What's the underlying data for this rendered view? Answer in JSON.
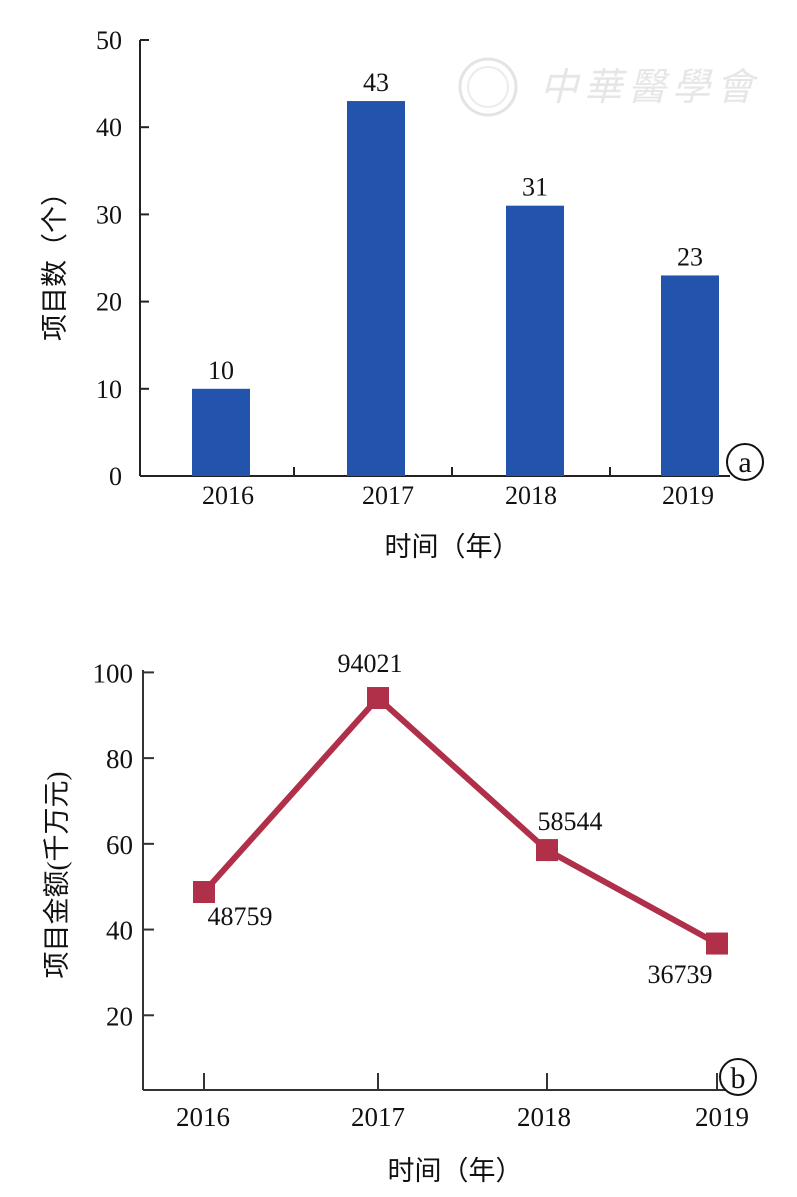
{
  "watermark": {
    "text": "中華醫學會"
  },
  "chart_data": [
    {
      "type": "bar",
      "panel_label": "a",
      "categories": [
        "2016",
        "2017",
        "2018",
        "2019"
      ],
      "values": [
        10,
        43,
        31,
        23
      ],
      "data_labels": [
        "10",
        "43",
        "31",
        "23"
      ],
      "xlabel": "时间（年）",
      "ylabel": "项目数（个）",
      "ylim": [
        0,
        50
      ],
      "yticks": [
        "0",
        "10",
        "20",
        "30",
        "40",
        "50"
      ],
      "grid": false,
      "color": "#2254ad"
    },
    {
      "type": "line",
      "panel_label": "b",
      "categories": [
        "2016",
        "2017",
        "2018",
        "2019"
      ],
      "values": [
        48.759,
        94.021,
        58.544,
        36.739
      ],
      "data_labels": [
        "48759",
        "94021",
        "58544",
        "36739"
      ],
      "xlabel": "时间（年）",
      "ylabel": "项目金额(千万元)",
      "ylim": [
        2.5,
        100
      ],
      "yticks": [
        "20",
        "40",
        "60",
        "80",
        "100"
      ],
      "grid": false,
      "color": "#b0304a",
      "marker": "square"
    }
  ]
}
